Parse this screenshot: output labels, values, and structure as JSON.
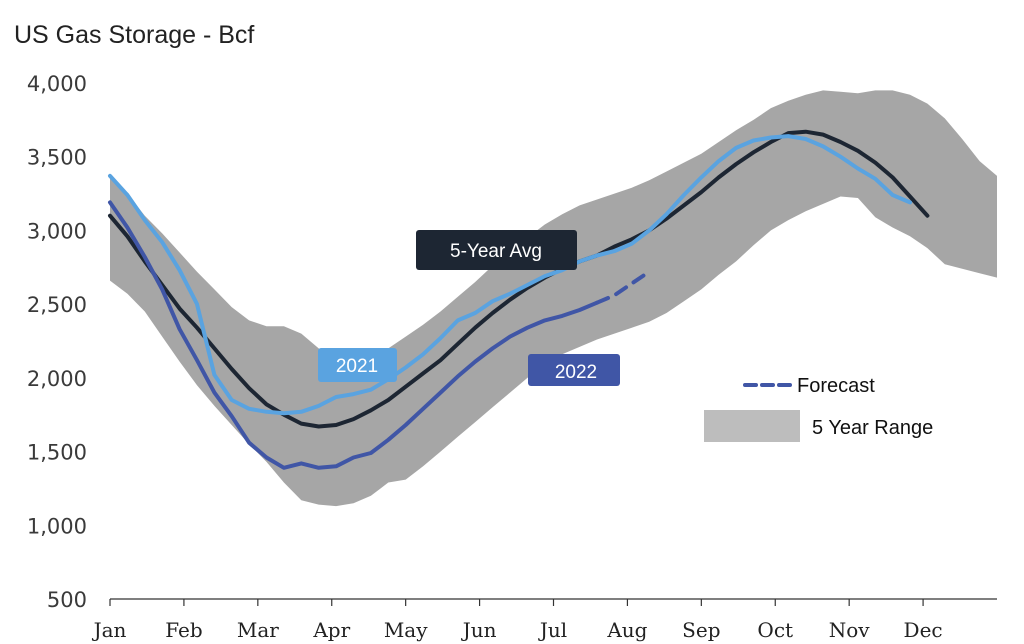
{
  "chart_data": {
    "type": "line",
    "title": "US Gas Storage - Bcf",
    "xlabel": "",
    "ylabel": "",
    "ylim": [
      500,
      4000
    ],
    "y_ticks": [
      "500",
      "1,000",
      "1,500",
      "2,000",
      "2,500",
      "3,000",
      "3,500",
      "4,000"
    ],
    "y_tick_values": [
      500,
      1000,
      1500,
      2000,
      2500,
      3000,
      3500,
      4000
    ],
    "x_ticks": [
      "Jan",
      "Feb",
      "Mar",
      "Apr",
      "May",
      "Jun",
      "Jul",
      "Aug",
      "Sep",
      "Oct",
      "Nov",
      "Dec"
    ],
    "x_week_range": [
      1,
      52
    ],
    "grid": false,
    "range_band": {
      "name": "5 Year Range",
      "color": "#a6a6a6",
      "upper": [
        [
          1,
          3360
        ],
        [
          2,
          3250
        ],
        [
          3,
          3100
        ],
        [
          4,
          2980
        ],
        [
          5,
          2850
        ],
        [
          6,
          2720
        ],
        [
          7,
          2600
        ],
        [
          8,
          2480
        ],
        [
          9,
          2390
        ],
        [
          10,
          2350
        ],
        [
          11,
          2350
        ],
        [
          12,
          2300
        ],
        [
          13,
          2200
        ],
        [
          14,
          2080
        ],
        [
          15,
          2060
        ],
        [
          16,
          2100
        ],
        [
          17,
          2200
        ],
        [
          18,
          2280
        ],
        [
          19,
          2360
        ],
        [
          20,
          2450
        ],
        [
          21,
          2550
        ],
        [
          22,
          2650
        ],
        [
          23,
          2760
        ],
        [
          24,
          2860
        ],
        [
          25,
          2950
        ],
        [
          26,
          3040
        ],
        [
          27,
          3110
        ],
        [
          28,
          3170
        ],
        [
          29,
          3210
        ],
        [
          30,
          3250
        ],
        [
          31,
          3290
        ],
        [
          32,
          3340
        ],
        [
          33,
          3400
        ],
        [
          34,
          3460
        ],
        [
          35,
          3520
        ],
        [
          36,
          3600
        ],
        [
          37,
          3680
        ],
        [
          38,
          3750
        ],
        [
          39,
          3830
        ],
        [
          40,
          3880
        ],
        [
          41,
          3920
        ],
        [
          42,
          3950
        ],
        [
          43,
          3940
        ],
        [
          44,
          3930
        ],
        [
          45,
          3950
        ],
        [
          46,
          3950
        ],
        [
          47,
          3920
        ],
        [
          48,
          3860
        ],
        [
          49,
          3760
        ],
        [
          50,
          3620
        ],
        [
          51,
          3470
        ],
        [
          52,
          3370
        ]
      ],
      "lower": [
        [
          1,
          2660
        ],
        [
          2,
          2570
        ],
        [
          3,
          2450
        ],
        [
          4,
          2280
        ],
        [
          5,
          2110
        ],
        [
          6,
          1950
        ],
        [
          7,
          1810
        ],
        [
          8,
          1680
        ],
        [
          9,
          1550
        ],
        [
          10,
          1430
        ],
        [
          11,
          1290
        ],
        [
          12,
          1170
        ],
        [
          13,
          1140
        ],
        [
          14,
          1130
        ],
        [
          15,
          1150
        ],
        [
          16,
          1200
        ],
        [
          17,
          1290
        ],
        [
          18,
          1310
        ],
        [
          19,
          1400
        ],
        [
          20,
          1500
        ],
        [
          21,
          1600
        ],
        [
          22,
          1700
        ],
        [
          23,
          1800
        ],
        [
          24,
          1900
        ],
        [
          25,
          2000
        ],
        [
          26,
          2090
        ],
        [
          27,
          2160
        ],
        [
          28,
          2210
        ],
        [
          29,
          2260
        ],
        [
          30,
          2300
        ],
        [
          31,
          2340
        ],
        [
          32,
          2380
        ],
        [
          33,
          2440
        ],
        [
          34,
          2520
        ],
        [
          35,
          2600
        ],
        [
          36,
          2700
        ],
        [
          37,
          2790
        ],
        [
          38,
          2900
        ],
        [
          39,
          3000
        ],
        [
          40,
          3070
        ],
        [
          41,
          3130
        ],
        [
          42,
          3180
        ],
        [
          43,
          3230
        ],
        [
          44,
          3220
        ],
        [
          45,
          3090
        ],
        [
          46,
          3020
        ],
        [
          47,
          2960
        ],
        [
          48,
          2880
        ],
        [
          49,
          2770
        ],
        [
          50,
          2740
        ],
        [
          51,
          2710
        ],
        [
          52,
          2680
        ]
      ]
    },
    "series": [
      {
        "name": "5-Year Avg",
        "color": "#1d2633",
        "values": [
          [
            1,
            3100
          ],
          [
            2,
            2960
          ],
          [
            3,
            2790
          ],
          [
            4,
            2630
          ],
          [
            5,
            2470
          ],
          [
            6,
            2340
          ],
          [
            7,
            2200
          ],
          [
            8,
            2060
          ],
          [
            9,
            1930
          ],
          [
            10,
            1820
          ],
          [
            11,
            1750
          ],
          [
            12,
            1690
          ],
          [
            13,
            1670
          ],
          [
            14,
            1680
          ],
          [
            15,
            1720
          ],
          [
            16,
            1780
          ],
          [
            17,
            1850
          ],
          [
            18,
            1940
          ],
          [
            19,
            2030
          ],
          [
            20,
            2120
          ],
          [
            21,
            2230
          ],
          [
            22,
            2340
          ],
          [
            23,
            2440
          ],
          [
            24,
            2530
          ],
          [
            25,
            2610
          ],
          [
            26,
            2680
          ],
          [
            27,
            2740
          ],
          [
            28,
            2790
          ],
          [
            29,
            2830
          ],
          [
            30,
            2890
          ],
          [
            31,
            2940
          ],
          [
            32,
            3000
          ],
          [
            33,
            3080
          ],
          [
            34,
            3170
          ],
          [
            35,
            3260
          ],
          [
            36,
            3360
          ],
          [
            37,
            3450
          ],
          [
            38,
            3530
          ],
          [
            39,
            3600
          ],
          [
            40,
            3660
          ],
          [
            41,
            3670
          ],
          [
            42,
            3650
          ],
          [
            43,
            3600
          ],
          [
            44,
            3540
          ],
          [
            45,
            3460
          ],
          [
            46,
            3360
          ],
          [
            47,
            3230
          ],
          [
            48,
            3100
          ]
        ]
      },
      {
        "name": "2021",
        "color": "#5aa3e0",
        "values": [
          [
            1,
            3370
          ],
          [
            2,
            3240
          ],
          [
            3,
            3070
          ],
          [
            4,
            2920
          ],
          [
            5,
            2730
          ],
          [
            6,
            2500
          ],
          [
            7,
            2020
          ],
          [
            8,
            1850
          ],
          [
            9,
            1790
          ],
          [
            10,
            1770
          ],
          [
            11,
            1760
          ],
          [
            12,
            1770
          ],
          [
            13,
            1810
          ],
          [
            14,
            1870
          ],
          [
            15,
            1890
          ],
          [
            16,
            1920
          ],
          [
            17,
            1990
          ],
          [
            18,
            2070
          ],
          [
            19,
            2160
          ],
          [
            20,
            2270
          ],
          [
            21,
            2390
          ],
          [
            22,
            2440
          ],
          [
            23,
            2520
          ],
          [
            24,
            2570
          ],
          [
            25,
            2630
          ],
          [
            26,
            2690
          ],
          [
            27,
            2730
          ],
          [
            28,
            2790
          ],
          [
            29,
            2830
          ],
          [
            30,
            2860
          ],
          [
            31,
            2910
          ],
          [
            32,
            3000
          ],
          [
            33,
            3110
          ],
          [
            34,
            3240
          ],
          [
            35,
            3360
          ],
          [
            36,
            3470
          ],
          [
            37,
            3560
          ],
          [
            38,
            3610
          ],
          [
            39,
            3630
          ],
          [
            40,
            3640
          ],
          [
            41,
            3620
          ],
          [
            42,
            3570
          ],
          [
            43,
            3500
          ],
          [
            44,
            3420
          ],
          [
            45,
            3350
          ],
          [
            46,
            3240
          ],
          [
            47,
            3190
          ]
        ]
      },
      {
        "name": "2022",
        "color": "#4056a6",
        "values": [
          [
            1,
            3190
          ],
          [
            2,
            3020
          ],
          [
            3,
            2820
          ],
          [
            4,
            2600
          ],
          [
            5,
            2330
          ],
          [
            6,
            2120
          ],
          [
            7,
            1900
          ],
          [
            8,
            1740
          ],
          [
            9,
            1560
          ],
          [
            10,
            1460
          ],
          [
            11,
            1390
          ],
          [
            12,
            1420
          ],
          [
            13,
            1390
          ],
          [
            14,
            1400
          ],
          [
            15,
            1460
          ],
          [
            16,
            1490
          ],
          [
            17,
            1580
          ],
          [
            18,
            1680
          ],
          [
            19,
            1790
          ],
          [
            20,
            1900
          ],
          [
            21,
            2010
          ],
          [
            22,
            2110
          ],
          [
            23,
            2200
          ],
          [
            24,
            2280
          ],
          [
            25,
            2340
          ],
          [
            26,
            2390
          ],
          [
            27,
            2420
          ],
          [
            28,
            2460
          ],
          [
            29,
            2510
          ]
        ]
      },
      {
        "name": "Forecast",
        "color": "#4056a6",
        "dashed": true,
        "values": [
          [
            29,
            2510
          ],
          [
            30,
            2560
          ],
          [
            31,
            2640
          ],
          [
            32,
            2720
          ]
        ]
      }
    ],
    "annotations": [
      {
        "text": "5-Year Avg",
        "bg": "#1d2633"
      },
      {
        "text": "2021",
        "bg": "#5aa3e0"
      },
      {
        "text": "2022",
        "bg": "#4056a6"
      }
    ],
    "legend": {
      "placement": "right",
      "entries": [
        {
          "label": "Forecast",
          "style": "dashed-line",
          "color": "#4056a6"
        },
        {
          "label": "5 Year Range",
          "style": "patch",
          "color": "#bdbdbd"
        }
      ]
    }
  }
}
